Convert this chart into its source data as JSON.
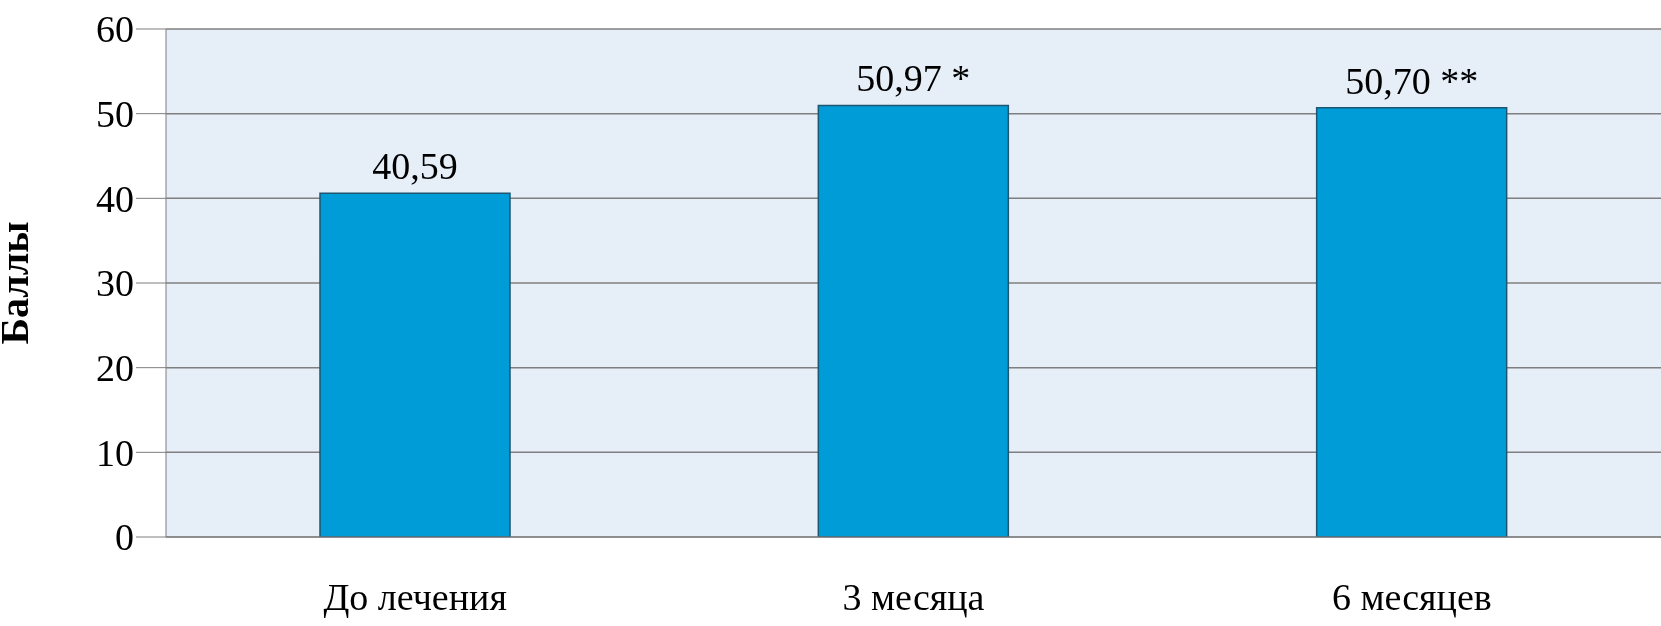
{
  "chart_data": {
    "type": "bar",
    "ylabel": "Баллы",
    "categories": [
      "До лечения",
      "3 месяца",
      "6 месяцев"
    ],
    "values": [
      40.59,
      50.97,
      50.7
    ],
    "value_labels": [
      "40,59",
      "50,97 *",
      "50,70 **"
    ],
    "color": "#009cd8",
    "ylim": [
      0,
      60
    ],
    "yticks": [
      0,
      10,
      20,
      30,
      40,
      50,
      60
    ],
    "grid": "y"
  }
}
